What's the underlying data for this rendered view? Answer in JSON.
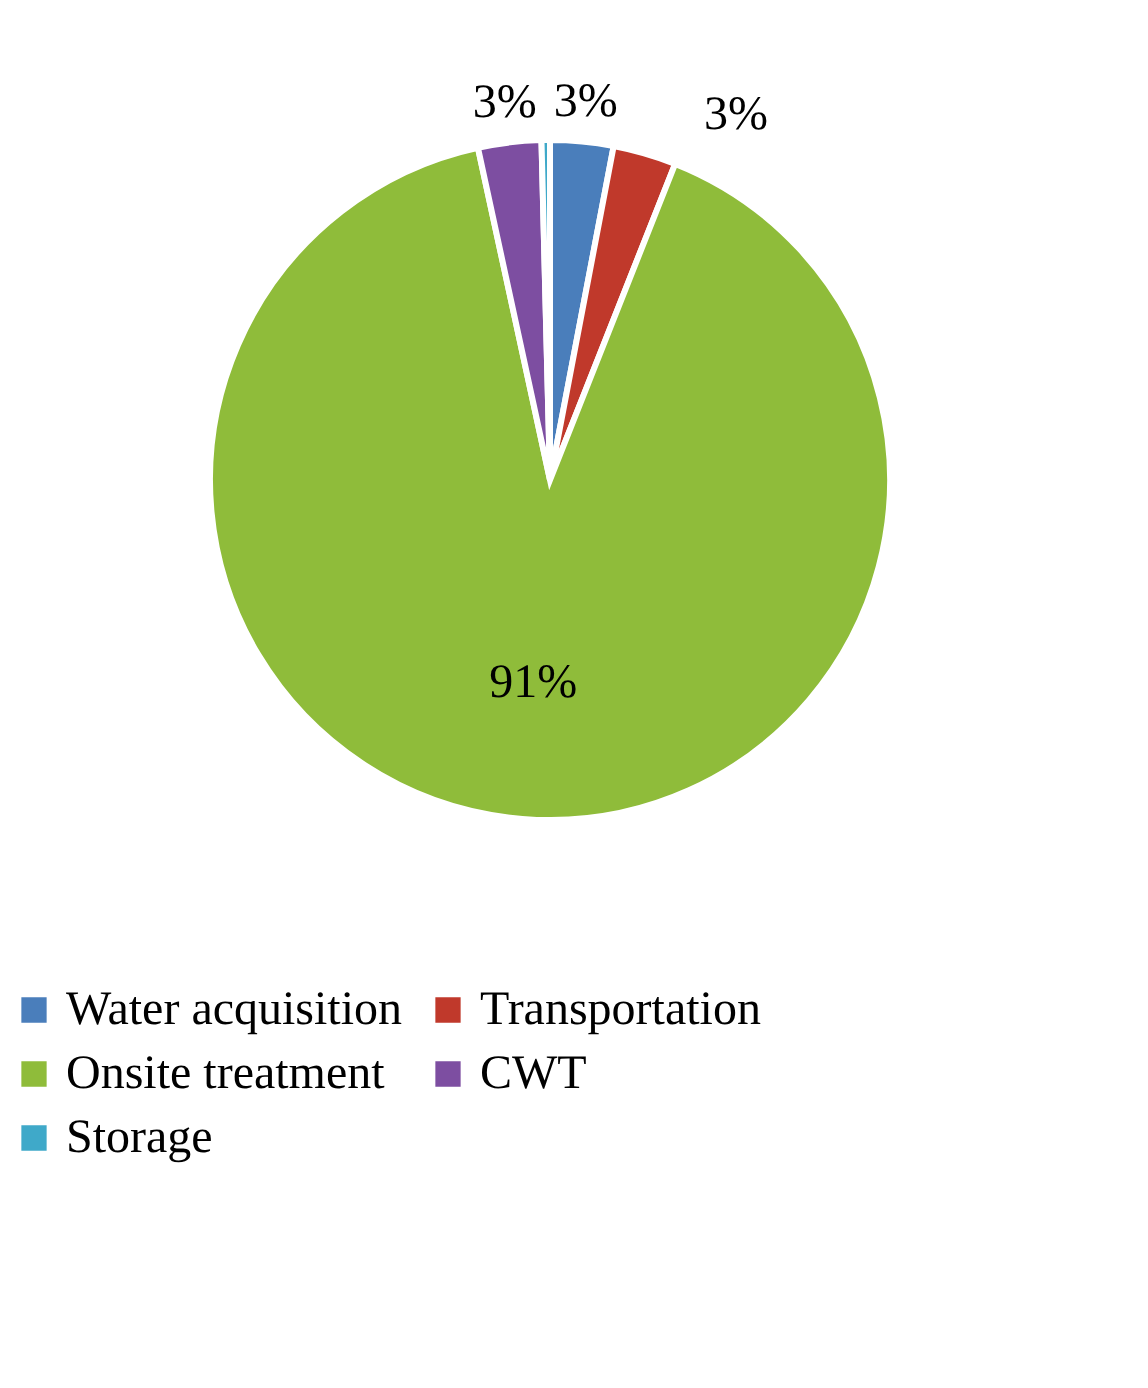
{
  "chart_data": {
    "type": "pie",
    "categories": [
      "Water acquisition",
      "Transportation",
      "Onsite treatment",
      "CWT",
      "Storage"
    ],
    "values": [
      3,
      3,
      90.6,
      3,
      0.4
    ],
    "colors": [
      "#4a7ebb",
      "#c0392b",
      "#8fbc3a",
      "#7d4ea1",
      "#3fa9c9"
    ],
    "value_labels": [
      "3%",
      "3%",
      "91%",
      "3%",
      null
    ],
    "legend": "bottom"
  }
}
